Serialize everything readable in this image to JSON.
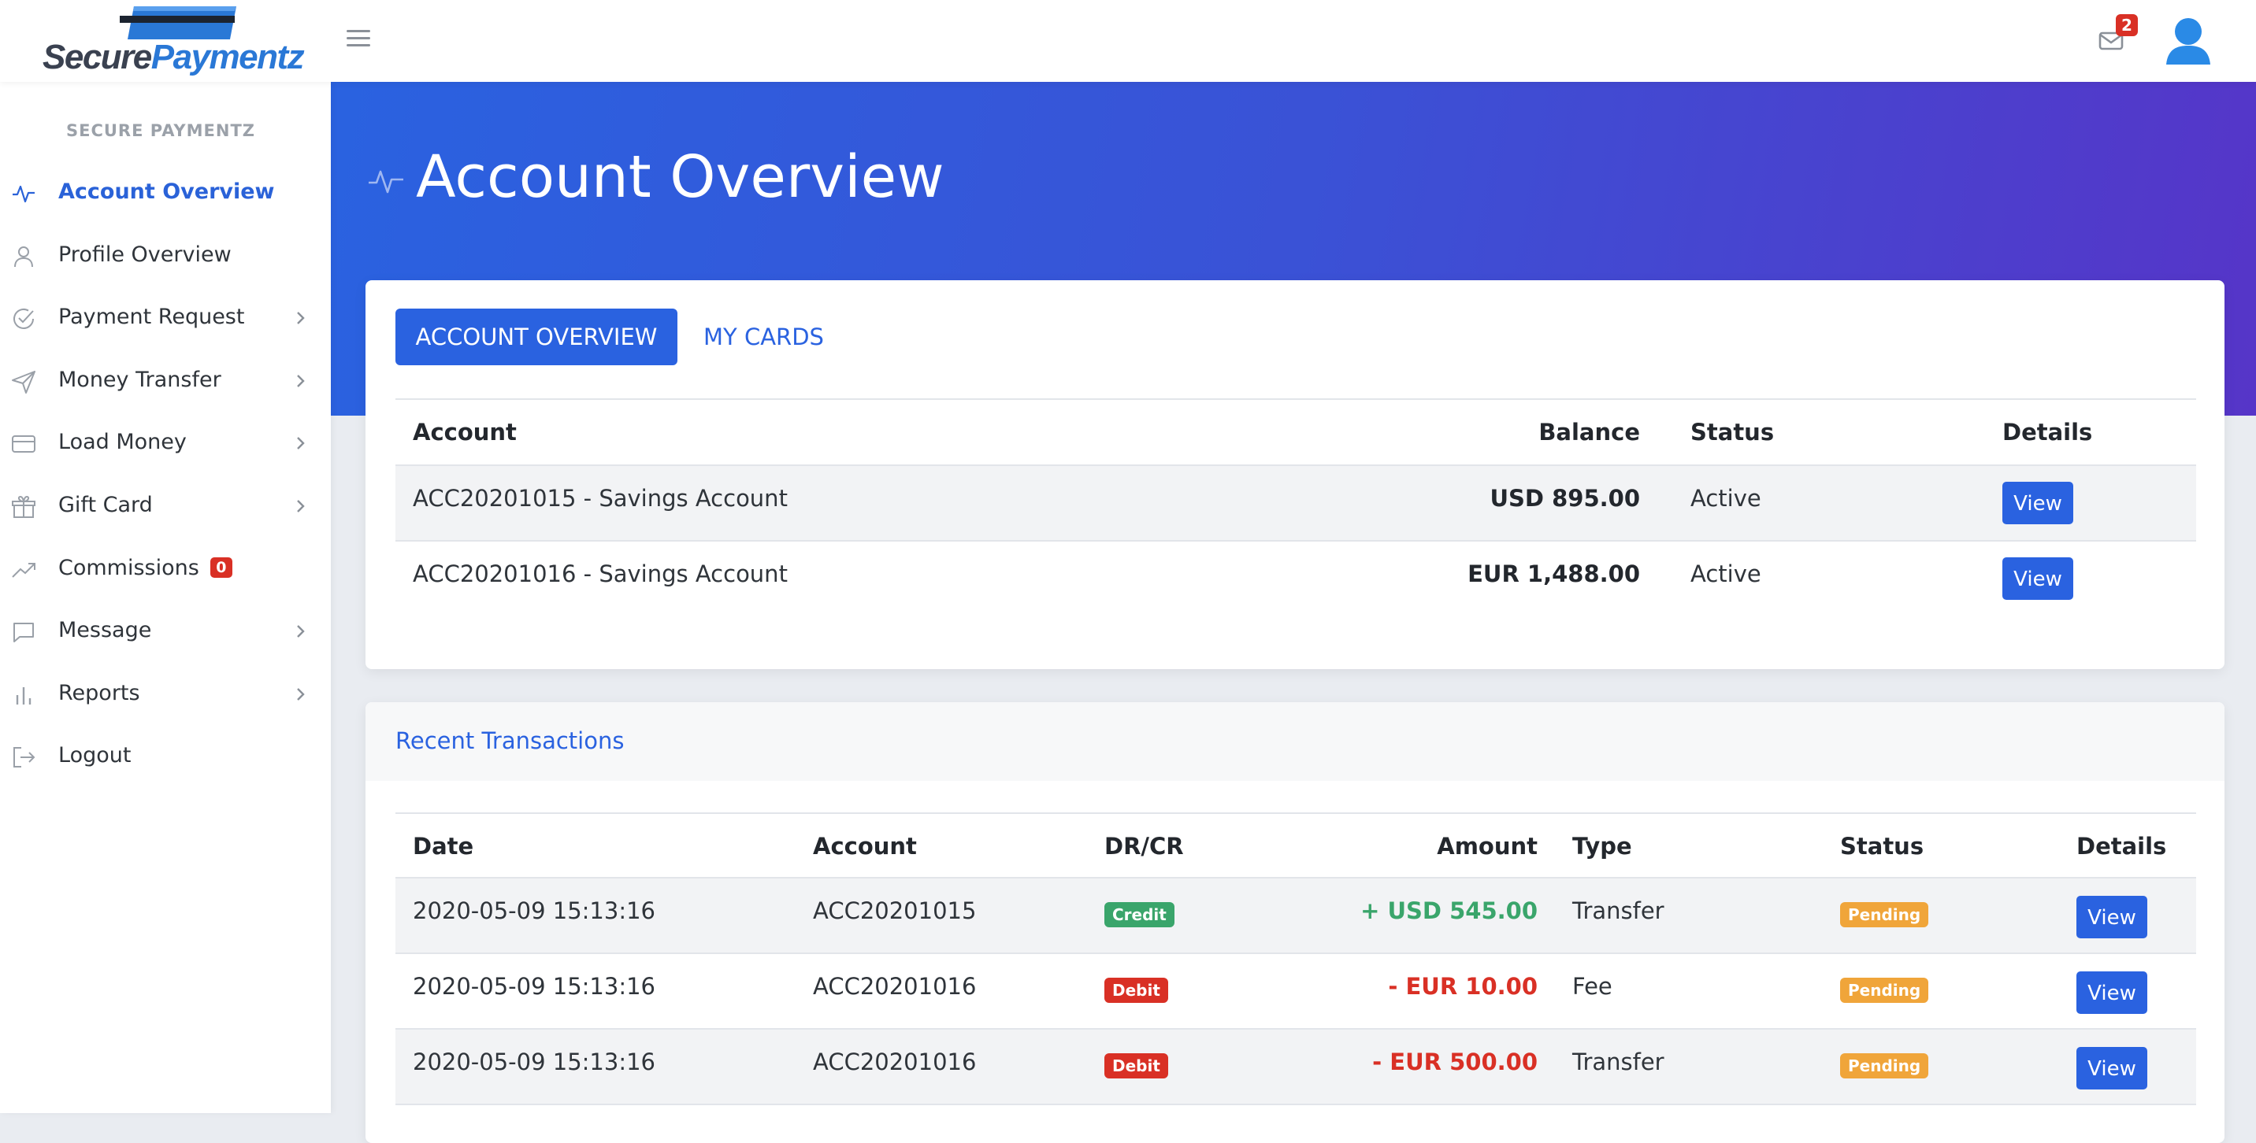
{
  "brand": {
    "logo_part1": "Secure",
    "logo_part2": "Paymentz",
    "accent": "#2a62e0",
    "logo_blue": "#2a78d6"
  },
  "header": {
    "mail_count": "2",
    "icons": [
      "menu-icon",
      "mail-icon",
      "user-avatar-icon"
    ]
  },
  "sidebar": {
    "title": "SECURE PAYMENTZ",
    "items": [
      {
        "label": "Account Overview",
        "icon": "activity-icon",
        "active": true,
        "chevron": false
      },
      {
        "label": "Profile Overview",
        "icon": "user-icon",
        "chevron": false
      },
      {
        "label": "Payment Request",
        "icon": "check-circle-icon",
        "chevron": true
      },
      {
        "label": "Money Transfer",
        "icon": "send-icon",
        "chevron": true
      },
      {
        "label": "Load Money",
        "icon": "credit-card-icon",
        "chevron": true
      },
      {
        "label": "Gift Card",
        "icon": "gift-icon",
        "chevron": true
      },
      {
        "label": "Commissions",
        "icon": "trending-up-icon",
        "badge": "0",
        "chevron": false
      },
      {
        "label": "Message",
        "icon": "message-icon",
        "chevron": true
      },
      {
        "label": "Reports",
        "icon": "bar-chart-icon",
        "chevron": true
      },
      {
        "label": "Logout",
        "icon": "logout-icon",
        "chevron": false
      }
    ]
  },
  "page": {
    "title": "Account Overview",
    "tabs": [
      "ACCOUNT OVERVIEW",
      "MY CARDS"
    ]
  },
  "accounts": {
    "headers": {
      "account": "Account",
      "balance": "Balance",
      "status": "Status",
      "details": "Details"
    },
    "rows": [
      {
        "account": "ACC20201015 - Savings Account",
        "balance": "USD 895.00",
        "status": "Active",
        "action": "View"
      },
      {
        "account": "ACC20201016 - Savings Account",
        "balance": "EUR 1,488.00",
        "status": "Active",
        "action": "View"
      }
    ]
  },
  "transactions": {
    "title": "Recent Transactions",
    "headers": {
      "date": "Date",
      "account": "Account",
      "drcr": "DR/CR",
      "amount": "Amount",
      "type": "Type",
      "status": "Status",
      "details": "Details"
    },
    "rows": [
      {
        "date": "2020-05-09 15:13:16",
        "account": "ACC20201015",
        "drcr": "Credit",
        "amount": "+ USD 545.00",
        "type": "Transfer",
        "status": "Pending",
        "action": "View"
      },
      {
        "date": "2020-05-09 15:13:16",
        "account": "ACC20201016",
        "drcr": "Debit",
        "amount": "- EUR 10.00",
        "type": "Fee",
        "status": "Pending",
        "action": "View"
      },
      {
        "date": "2020-05-09 15:13:16",
        "account": "ACC20201016",
        "drcr": "Debit",
        "amount": "- EUR 500.00",
        "type": "Transfer",
        "status": "Pending",
        "action": "View"
      }
    ]
  }
}
